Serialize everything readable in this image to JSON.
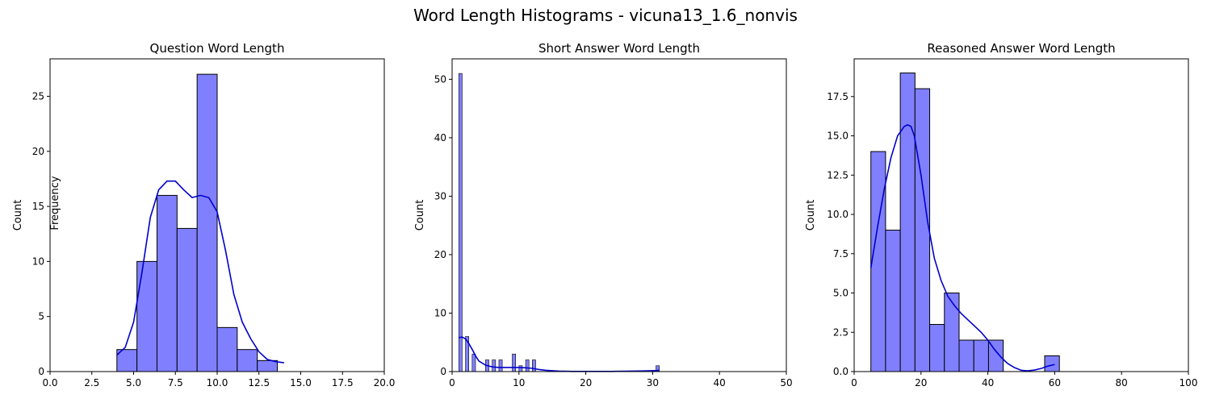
{
  "figure": {
    "title": "Word Length Histograms - vicuna13_1.6_nonvis",
    "stray_label": "Frequency"
  },
  "colors": {
    "bar_fill": "#8080FF",
    "bar_edge": "#000000",
    "kde_line": "#0000CC",
    "axes": "#000000",
    "background": "#FFFFFF"
  },
  "chart_data": [
    {
      "type": "bar",
      "title": "Question Word Length",
      "xlabel": "",
      "ylabel": "Count",
      "xlim": [
        0,
        20
      ],
      "ylim": [
        0,
        28.4
      ],
      "xticks": [
        0,
        2.5,
        5,
        7.5,
        10,
        12.5,
        15,
        17.5,
        20
      ],
      "xtick_labels": [
        "0.0",
        "2.5",
        "5.0",
        "7.5",
        "10.0",
        "12.5",
        "15.0",
        "17.5",
        "20.0"
      ],
      "yticks": [
        0,
        5,
        10,
        15,
        20,
        25
      ],
      "ytick_labels": [
        "0",
        "5",
        "10",
        "15",
        "20",
        "25"
      ],
      "bins": [
        {
          "x0": 4.0,
          "x1": 5.2,
          "count": 2
        },
        {
          "x0": 5.2,
          "x1": 6.4,
          "count": 10
        },
        {
          "x0": 6.4,
          "x1": 7.6,
          "count": 16
        },
        {
          "x0": 7.6,
          "x1": 8.8,
          "count": 13
        },
        {
          "x0": 8.8,
          "x1": 10.0,
          "count": 27
        },
        {
          "x0": 10.0,
          "x1": 11.2,
          "count": 4
        },
        {
          "x0": 11.2,
          "x1": 12.4,
          "count": 2
        },
        {
          "x0": 12.4,
          "x1": 13.6,
          "count": 1
        }
      ],
      "kde": {
        "x": [
          4.0,
          4.5,
          5.0,
          5.5,
          6.0,
          6.5,
          7.0,
          7.5,
          8.0,
          8.5,
          9.0,
          9.5,
          10.0,
          10.5,
          11.0,
          11.5,
          12.0,
          12.5,
          13.0,
          13.5,
          14.0
        ],
        "y": [
          1.5,
          2.2,
          4.5,
          9.0,
          14.0,
          16.5,
          17.3,
          17.3,
          16.5,
          15.8,
          16.0,
          15.8,
          14.5,
          11.0,
          7.0,
          4.5,
          3.0,
          1.8,
          1.1,
          0.9,
          0.8
        ]
      }
    },
    {
      "type": "bar",
      "title": "Short Answer Word Length",
      "xlabel": "",
      "ylabel": "Count",
      "xlim": [
        0,
        50
      ],
      "ylim": [
        0,
        53.5
      ],
      "xticks": [
        0,
        10,
        20,
        30,
        40,
        50
      ],
      "xtick_labels": [
        "0",
        "10",
        "20",
        "30",
        "40",
        "50"
      ],
      "yticks": [
        0,
        10,
        20,
        30,
        40,
        50
      ],
      "ytick_labels": [
        "0",
        "10",
        "20",
        "30",
        "40",
        "50"
      ],
      "bins": [
        {
          "x0": 1.0,
          "x1": 1.5,
          "count": 51
        },
        {
          "x0": 2.0,
          "x1": 2.5,
          "count": 6
        },
        {
          "x0": 3.0,
          "x1": 3.5,
          "count": 3
        },
        {
          "x0": 5.0,
          "x1": 5.5,
          "count": 2
        },
        {
          "x0": 6.0,
          "x1": 6.5,
          "count": 2
        },
        {
          "x0": 7.0,
          "x1": 7.5,
          "count": 2
        },
        {
          "x0": 9.0,
          "x1": 9.5,
          "count": 3
        },
        {
          "x0": 10.0,
          "x1": 10.5,
          "count": 1
        },
        {
          "x0": 11.0,
          "x1": 11.5,
          "count": 2
        },
        {
          "x0": 12.0,
          "x1": 12.5,
          "count": 2
        },
        {
          "x0": 30.5,
          "x1": 31.0,
          "count": 1
        }
      ],
      "kde": {
        "x": [
          1,
          1.5,
          2,
          2.5,
          3,
          3.5,
          4,
          5,
          6,
          7,
          8,
          9,
          10,
          11,
          12,
          13,
          14,
          16,
          18,
          20,
          22,
          24,
          26,
          28,
          30,
          31
        ],
        "y": [
          5.8,
          5.9,
          5.6,
          4.8,
          3.8,
          2.7,
          1.8,
          1.1,
          0.8,
          0.7,
          0.7,
          0.7,
          0.7,
          0.65,
          0.55,
          0.35,
          0.22,
          0.08,
          0.03,
          0.02,
          0.02,
          0.03,
          0.06,
          0.1,
          0.15,
          0.2
        ]
      }
    },
    {
      "type": "bar",
      "title": "Reasoned Answer Word Length",
      "xlabel": "",
      "ylabel": "Count",
      "xlim": [
        0,
        100
      ],
      "ylim": [
        0,
        19.9
      ],
      "xticks": [
        0,
        20,
        40,
        60,
        80,
        100
      ],
      "xtick_labels": [
        "0",
        "20",
        "40",
        "60",
        "80",
        "100"
      ],
      "yticks": [
        0,
        2.5,
        5,
        7.5,
        10,
        12.5,
        15,
        17.5
      ],
      "ytick_labels": [
        "0.0",
        "2.5",
        "5.0",
        "7.5",
        "10.0",
        "12.5",
        "15.0",
        "17.5"
      ],
      "bins": [
        {
          "x0": 5.0,
          "x1": 9.4,
          "count": 14
        },
        {
          "x0": 9.4,
          "x1": 13.8,
          "count": 9
        },
        {
          "x0": 13.8,
          "x1": 18.2,
          "count": 19
        },
        {
          "x0": 18.2,
          "x1": 22.6,
          "count": 18
        },
        {
          "x0": 22.6,
          "x1": 27.0,
          "count": 3
        },
        {
          "x0": 27.0,
          "x1": 31.4,
          "count": 5
        },
        {
          "x0": 31.4,
          "x1": 35.8,
          "count": 2
        },
        {
          "x0": 35.8,
          "x1": 40.2,
          "count": 2
        },
        {
          "x0": 40.2,
          "x1": 44.6,
          "count": 2
        },
        {
          "x0": 57.0,
          "x1": 61.4,
          "count": 1
        }
      ],
      "kde": {
        "x": [
          5,
          7,
          9,
          11,
          13,
          15,
          16,
          17,
          18,
          20,
          22,
          24,
          26,
          28,
          30,
          32,
          34,
          36,
          38,
          40,
          42,
          44,
          46,
          48,
          50,
          52,
          54,
          56,
          58,
          60
        ],
        "y": [
          6.6,
          9.2,
          11.6,
          13.6,
          15.0,
          15.6,
          15.7,
          15.6,
          15.0,
          12.5,
          9.5,
          7.2,
          5.8,
          4.8,
          4.2,
          3.7,
          3.3,
          2.9,
          2.5,
          2.0,
          1.4,
          0.9,
          0.5,
          0.25,
          0.08,
          0.05,
          0.1,
          0.2,
          0.35,
          0.45
        ]
      }
    }
  ]
}
